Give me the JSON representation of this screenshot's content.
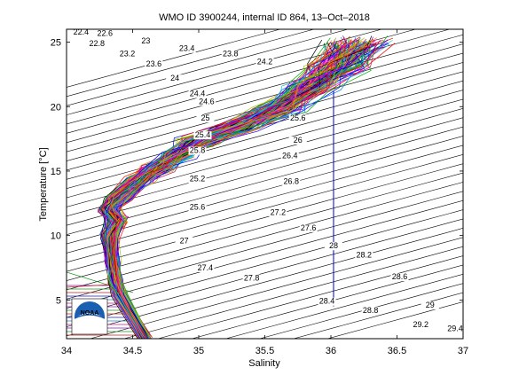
{
  "chart_data": {
    "type": "line",
    "title": "WMO ID 3900244, internal ID 864, 13–Oct–2018",
    "xlabel": "Salinity",
    "ylabel": "Temperature [°C]",
    "xlim": [
      34,
      37
    ],
    "ylim": [
      2,
      26
    ],
    "xticks": [
      34,
      34.5,
      35,
      35.5,
      36,
      36.5,
      37
    ],
    "yticks": [
      5,
      10,
      15,
      20,
      25
    ],
    "xtick_labels": [
      "34",
      "34.5",
      "35",
      "35.5",
      "36",
      "36.5",
      "37"
    ],
    "ytick_labels": [
      "5",
      "10",
      "15",
      "20",
      "25"
    ],
    "density_contours": [
      22.4,
      22.6,
      22.8,
      23,
      23.2,
      23.4,
      23.6,
      23.8,
      24,
      24.2,
      24.4,
      24.6,
      24.8,
      25,
      25.2,
      25.4,
      25.6,
      25.8,
      26,
      26.2,
      26.4,
      26.6,
      26.8,
      27,
      27.2,
      27.4,
      27.6,
      27.8,
      28,
      28.2,
      28.4,
      28.6,
      28.8,
      29,
      29.2,
      29.4
    ],
    "density_labels": [
      {
        "text": "22.4",
        "s": 34.11,
        "t": 25.6
      },
      {
        "text": "22.6",
        "s": 34.29,
        "t": 25.5
      },
      {
        "text": "22.8",
        "s": 34.23,
        "t": 24.7
      },
      {
        "text": "23",
        "s": 34.6,
        "t": 24.9
      },
      {
        "text": "23.2",
        "s": 34.46,
        "t": 23.9
      },
      {
        "text": "23.4",
        "s": 34.91,
        "t": 24.3
      },
      {
        "text": "23.6",
        "s": 34.66,
        "t": 23.1
      },
      {
        "text": "23.8",
        "s": 35.24,
        "t": 23.9
      },
      {
        "text": "24",
        "s": 34.82,
        "t": 22.0
      },
      {
        "text": "24.2",
        "s": 35.5,
        "t": 23.3
      },
      {
        "text": "24.4",
        "s": 34.99,
        "t": 20.8
      },
      {
        "text": "24.6",
        "s": 35.06,
        "t": 20.2
      },
      {
        "text": "25",
        "s": 35.05,
        "t": 18.9
      },
      {
        "text": "25.4",
        "s": 35.03,
        "t": 17.6
      },
      {
        "text": "25.6",
        "s": 35.75,
        "t": 18.9
      },
      {
        "text": "25.8",
        "s": 34.99,
        "t": 16.4
      },
      {
        "text": "26",
        "s": 35.75,
        "t": 17.2
      },
      {
        "text": "26.4",
        "s": 35.69,
        "t": 16.0
      },
      {
        "text": "25.2",
        "s": 34.99,
        "t": 14.2
      },
      {
        "text": "26.8",
        "s": 35.7,
        "t": 14.0
      },
      {
        "text": "25.6",
        "s": 34.99,
        "t": 12.0
      },
      {
        "text": "27.2",
        "s": 35.6,
        "t": 11.6
      },
      {
        "text": "27.6",
        "s": 35.83,
        "t": 10.4
      },
      {
        "text": "27",
        "s": 34.89,
        "t": 9.4
      },
      {
        "text": "28",
        "s": 36.02,
        "t": 9.0
      },
      {
        "text": "28.2",
        "s": 36.25,
        "t": 8.3
      },
      {
        "text": "27.4",
        "s": 35.05,
        "t": 7.3
      },
      {
        "text": "27.8",
        "s": 35.4,
        "t": 6.5
      },
      {
        "text": "28.6",
        "s": 36.52,
        "t": 6.6
      },
      {
        "text": "28.4",
        "s": 35.97,
        "t": 4.7
      },
      {
        "text": "28.8",
        "s": 36.3,
        "t": 4.0
      },
      {
        "text": "29",
        "s": 36.75,
        "t": 4.4
      },
      {
        "text": "29.2",
        "s": 36.68,
        "t": 2.9
      },
      {
        "text": "29.4",
        "s": 36.94,
        "t": 2.6
      }
    ],
    "profiles_count": 150,
    "profile_shape": [
      [
        34.6,
        2.0
      ],
      [
        34.4,
        5.5
      ],
      [
        34.37,
        6.5
      ],
      [
        34.35,
        8.0
      ],
      [
        34.33,
        10.0
      ],
      [
        34.38,
        11.2
      ],
      [
        34.32,
        12.0
      ],
      [
        34.4,
        13.0
      ],
      [
        34.55,
        14.3
      ],
      [
        34.7,
        15.3
      ],
      [
        34.85,
        16.3
      ],
      [
        35.0,
        17.3
      ],
      [
        35.3,
        18.4
      ],
      [
        35.6,
        19.8
      ],
      [
        35.85,
        21.5
      ],
      [
        36.05,
        23.2
      ],
      [
        36.2,
        25.0
      ]
    ],
    "vertical_line": {
      "s": 36.02,
      "t_min": 4.5,
      "t_max": 21.2,
      "color": "#0000cc"
    },
    "logo_text": "NOAA"
  }
}
